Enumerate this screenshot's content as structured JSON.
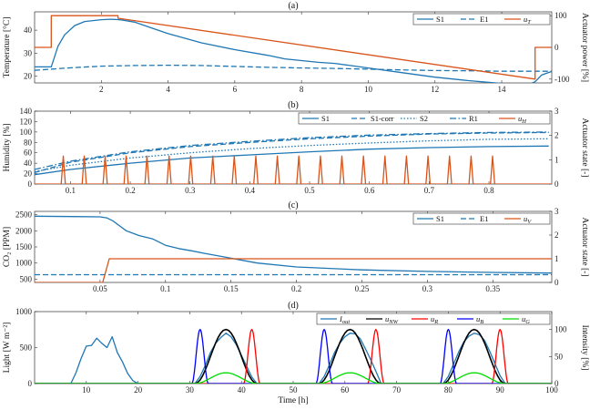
{
  "colors": {
    "blue": "#1f77b4",
    "orange": "#d9541a",
    "black": "#000000",
    "red": "#ff0000",
    "pureblue": "#0000ff",
    "green": "#00dd00"
  },
  "chart_data": [
    {
      "type": "line",
      "title": "(a)",
      "ylabel": "Temperature [°C]",
      "ylabel_right": "Actuator power [%]",
      "xlim": [
        0,
        15.5
      ],
      "ylim": [
        17,
        48
      ],
      "ylim_right": [
        -112,
        112
      ],
      "xticks": [
        2,
        4,
        6,
        8,
        10,
        12,
        14
      ],
      "yticks": [
        20,
        30,
        40
      ],
      "yticks_right": [
        -100,
        0,
        100
      ],
      "legend": [
        "S1",
        "E1",
        "u_T"
      ],
      "series": [
        {
          "name": "S1",
          "axis": "left",
          "style": "solid",
          "x": [
            0,
            0.5,
            0.7,
            0.9,
            1.2,
            1.5,
            2.0,
            2.3,
            2.6,
            3.0,
            3.5,
            4.0,
            5.0,
            6.0,
            7.0,
            7.5,
            8.5,
            9.0,
            10.0,
            11.0,
            12.0,
            13.0,
            14.0,
            14.8,
            15.0,
            15.2,
            15.5
          ],
          "y": [
            24,
            24,
            33,
            38,
            42,
            43.8,
            44.6,
            44.8,
            44.5,
            43.5,
            41,
            38.5,
            34.5,
            31.5,
            29,
            27.5,
            26,
            25.5,
            23.5,
            21.5,
            19.5,
            18,
            16.8,
            16.3,
            17.5,
            20.5,
            22
          ]
        },
        {
          "name": "E1",
          "axis": "left",
          "style": "dashed",
          "x": [
            0,
            1.0,
            2.0,
            3.0,
            4.0,
            5.0,
            6.0,
            7.0,
            8.0,
            9.0,
            10.0,
            11.0,
            12.0,
            13.0,
            14.0,
            15.0,
            15.5
          ],
          "y": [
            22.5,
            23.5,
            24.3,
            24.6,
            24.7,
            24.6,
            24.2,
            23.8,
            23.5,
            23.3,
            23.0,
            22.7,
            22.4,
            22.3,
            22.1,
            22.1,
            22.1
          ]
        },
        {
          "name": "u_T",
          "axis": "right",
          "style": "step",
          "x": [
            0,
            0.5,
            0.5,
            2.5,
            2.5,
            15.0,
            15.0,
            15.5
          ],
          "y": [
            0,
            0,
            100,
            100,
            92,
            -100,
            0,
            0
          ]
        }
      ]
    },
    {
      "type": "line",
      "title": "(b)",
      "ylabel": "Humidity [%]",
      "ylabel_right": "Actuator state [-]",
      "xlim": [
        0.04,
        0.905
      ],
      "ylim": [
        0,
        140
      ],
      "ylim_right": [
        0,
        3
      ],
      "xticks": [
        0.1,
        0.2,
        0.3,
        0.4,
        0.5,
        0.6,
        0.7,
        0.8
      ],
      "yticks": [
        0,
        20,
        40,
        60,
        80,
        100,
        120,
        140
      ],
      "yticks_right": [
        0,
        1,
        2,
        3
      ],
      "legend": [
        "S1",
        "S1-corr",
        "S2",
        "R1",
        "u_H"
      ],
      "series": [
        {
          "name": "S1",
          "axis": "left",
          "style": "solid",
          "x": [
            0.04,
            0.1,
            0.2,
            0.3,
            0.4,
            0.5,
            0.6,
            0.7,
            0.8,
            0.9
          ],
          "y": [
            18,
            28,
            40,
            50,
            56,
            62,
            67,
            70,
            72,
            73
          ]
        },
        {
          "name": "S1-corr",
          "axis": "left",
          "style": "dashed",
          "x": [
            0.04,
            0.1,
            0.2,
            0.3,
            0.4,
            0.5,
            0.6,
            0.7,
            0.8,
            0.9
          ],
          "y": [
            22,
            42,
            60,
            72,
            80,
            87,
            92,
            96,
            98,
            99
          ]
        },
        {
          "name": "S2",
          "axis": "left",
          "style": "dotted",
          "x": [
            0.04,
            0.1,
            0.2,
            0.3,
            0.4,
            0.5,
            0.6,
            0.7,
            0.8,
            0.9
          ],
          "y": [
            24,
            36,
            50,
            60,
            68,
            74,
            79,
            83,
            86,
            87
          ]
        },
        {
          "name": "R1",
          "axis": "left",
          "style": "dashdot",
          "x": [
            0.04,
            0.1,
            0.2,
            0.3,
            0.4,
            0.5,
            0.6,
            0.7,
            0.8,
            0.9
          ],
          "y": [
            28,
            44,
            62,
            74,
            82,
            89,
            94,
            97,
            99,
            100
          ]
        },
        {
          "name": "u_H",
          "axis": "right",
          "style": "pulses",
          "pulse_x": [
            0.088,
            0.123,
            0.158,
            0.193,
            0.228,
            0.265,
            0.301,
            0.338,
            0.374,
            0.41,
            0.446,
            0.482,
            0.518,
            0.554,
            0.59,
            0.626,
            0.662,
            0.698,
            0.734,
            0.77,
            0.806
          ],
          "amplitude": 1.15
        }
      ]
    },
    {
      "type": "line",
      "title": "(c)",
      "ylabel": "CO₂ [PPM]",
      "ylabel_right": "Actuator state [-]",
      "xlim": [
        0,
        0.395
      ],
      "ylim": [
        400,
        2600
      ],
      "ylim_right": [
        0,
        3
      ],
      "xticks": [
        0.05,
        0.1,
        0.15,
        0.2,
        0.25,
        0.3,
        0.35
      ],
      "yticks": [
        500,
        1000,
        1500,
        2000,
        2500
      ],
      "yticks_right": [
        0,
        1,
        2,
        3
      ],
      "legend": [
        "S1",
        "E1",
        "u_V"
      ],
      "series": [
        {
          "name": "S1",
          "axis": "left",
          "style": "solid",
          "x": [
            0,
            0.03,
            0.05,
            0.055,
            0.06,
            0.065,
            0.07,
            0.08,
            0.09,
            0.1,
            0.11,
            0.12,
            0.13,
            0.15,
            0.17,
            0.2,
            0.25,
            0.3,
            0.35,
            0.395
          ],
          "y": [
            2450,
            2440,
            2430,
            2400,
            2300,
            2150,
            2000,
            1850,
            1750,
            1550,
            1450,
            1380,
            1300,
            1150,
            1000,
            880,
            790,
            740,
            710,
            690
          ]
        },
        {
          "name": "E1",
          "axis": "left",
          "style": "dashed",
          "x": [
            0,
            0.395
          ],
          "y": [
            640,
            640
          ]
        },
        {
          "name": "u_V",
          "axis": "right",
          "style": "step",
          "x": [
            0,
            0.052,
            0.057,
            0.395
          ],
          "y": [
            0,
            0,
            1,
            1
          ]
        }
      ]
    },
    {
      "type": "line",
      "title": "(d)",
      "xlabel": "Time [h]",
      "ylabel": "Light [W m⁻²]",
      "ylabel_right": "Intensity [%]",
      "xlim": [
        0,
        100
      ],
      "ylim": [
        0,
        1000
      ],
      "ylim_right": [
        0,
        133
      ],
      "xticks": [
        10,
        20,
        30,
        40,
        50,
        60,
        70,
        80,
        90,
        100
      ],
      "yticks": [
        0,
        500,
        1000
      ],
      "yticks_right": [
        0,
        50,
        100
      ],
      "legend": [
        "I_out",
        "u_NW",
        "u_R",
        "u_B",
        "u_G"
      ],
      "series": [
        {
          "name": "I_out",
          "axis": "left",
          "style": "solid",
          "x": [
            0,
            7,
            8,
            9,
            10,
            11,
            12,
            13,
            14,
            15,
            16,
            17,
            18,
            19,
            20,
            21,
            31,
            32,
            33,
            34,
            35,
            36,
            37,
            38,
            39,
            40,
            41,
            42,
            43,
            55,
            56,
            57,
            58,
            59,
            60,
            61,
            62,
            63,
            64,
            65,
            66,
            67,
            79,
            80,
            81,
            82,
            83,
            84,
            85,
            86,
            87,
            88,
            89,
            90,
            91,
            100
          ],
          "y": [
            0,
            0,
            150,
            350,
            520,
            530,
            630,
            560,
            500,
            650,
            430,
            300,
            140,
            40,
            0,
            0,
            0,
            100,
            250,
            430,
            560,
            640,
            700,
            650,
            540,
            390,
            240,
            90,
            0,
            0,
            100,
            260,
            430,
            560,
            650,
            700,
            690,
            620,
            480,
            330,
            170,
            0,
            0,
            100,
            270,
            440,
            580,
            660,
            700,
            680,
            600,
            450,
            280,
            110,
            0,
            0
          ]
        },
        {
          "name": "u_NW",
          "axis": "right",
          "style": "bell",
          "centers": [
            37,
            61,
            85
          ],
          "half_width": 6,
          "peak": 100
        },
        {
          "name": "u_R",
          "axis": "right",
          "style": "bell",
          "centers": [
            42,
            66,
            90
          ],
          "half_width": 1.6,
          "peak": 100
        },
        {
          "name": "u_B",
          "axis": "right",
          "style": "bell",
          "centers": [
            32,
            56,
            80
          ],
          "half_width": 1.6,
          "peak": 100
        },
        {
          "name": "u_G",
          "axis": "right",
          "style": "bell",
          "centers": [
            37,
            61,
            85
          ],
          "half_width": 6,
          "peak": 20
        }
      ]
    }
  ]
}
